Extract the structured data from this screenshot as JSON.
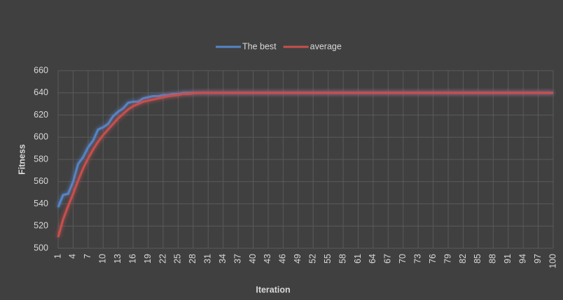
{
  "chart_data": {
    "type": "line",
    "x_label": "Iteration",
    "y_label": "Fitness",
    "categories": [
      "1",
      null,
      null,
      "4",
      null,
      null,
      "7",
      null,
      null,
      "10",
      null,
      null,
      "13",
      null,
      null,
      "16",
      null,
      null,
      "19",
      null,
      null,
      "22",
      null,
      null,
      "25",
      null,
      null,
      "28",
      null,
      null,
      "31",
      null,
      null,
      "34",
      null,
      null,
      "37",
      null,
      null,
      "40",
      null,
      null,
      "43",
      null,
      null,
      "46",
      null,
      null,
      "49",
      null,
      null,
      "52",
      null,
      null,
      "55",
      null,
      null,
      "58",
      null,
      null,
      "61",
      null,
      null,
      "64",
      null,
      null,
      "67",
      null,
      null,
      "70",
      null,
      null,
      "73",
      null,
      null,
      "76",
      null,
      null,
      "79",
      null,
      null,
      "82",
      null,
      null,
      "85",
      null,
      null,
      "88",
      null,
      null,
      "91",
      null,
      null,
      "94",
      null,
      null,
      "97",
      null,
      null,
      "100"
    ],
    "series": [
      {
        "name": "The best",
        "color": "#5585c8",
        "values": [
          537,
          548,
          549,
          560,
          576,
          582,
          591,
          597,
          607,
          609,
          612,
          619,
          623,
          626,
          631,
          632,
          632,
          635,
          636,
          637,
          637,
          638,
          638,
          639,
          639,
          640,
          640,
          640,
          640,
          640,
          640,
          640,
          640,
          640,
          640,
          640,
          640,
          640,
          640,
          640,
          640,
          640,
          640,
          640,
          640,
          640,
          640,
          640,
          640,
          640,
          640,
          640,
          640,
          640,
          640,
          640,
          640,
          640,
          640,
          640,
          640,
          640,
          640,
          640,
          640,
          640,
          640,
          640,
          640,
          640,
          640,
          640,
          640,
          640,
          640,
          640,
          640,
          640,
          640,
          640,
          640,
          640,
          640,
          640,
          640,
          640,
          640,
          640,
          640,
          640,
          640,
          640,
          640,
          640,
          640,
          640,
          640,
          640,
          640,
          640
        ]
      },
      {
        "name": "average",
        "color": "#c8504d",
        "values": [
          510,
          526,
          538,
          549,
          561,
          572,
          581,
          589,
          596,
          602,
          607,
          612,
          617,
          621,
          625,
          628,
          630,
          632,
          633,
          634,
          635,
          636,
          637,
          637.5,
          638,
          639,
          639,
          639.5,
          640,
          640,
          640,
          640,
          640,
          640,
          640,
          640,
          640,
          640,
          640,
          640,
          640,
          640,
          640,
          640,
          640,
          640,
          640,
          640,
          640,
          640,
          640,
          640,
          640,
          640,
          640,
          640,
          640,
          640,
          640,
          640,
          640,
          640,
          640,
          640,
          640,
          640,
          640,
          640,
          640,
          640,
          640,
          640,
          640,
          640,
          640,
          640,
          640,
          640,
          640,
          640,
          640,
          640,
          640,
          640,
          640,
          640,
          640,
          640,
          640,
          640,
          640,
          640,
          640,
          640,
          640,
          640,
          640,
          640,
          640,
          640
        ]
      }
    ],
    "ylim": [
      500,
      660
    ],
    "yticks": [
      500,
      520,
      540,
      560,
      580,
      600,
      620,
      640,
      660
    ],
    "grid": true,
    "legend": "top"
  }
}
